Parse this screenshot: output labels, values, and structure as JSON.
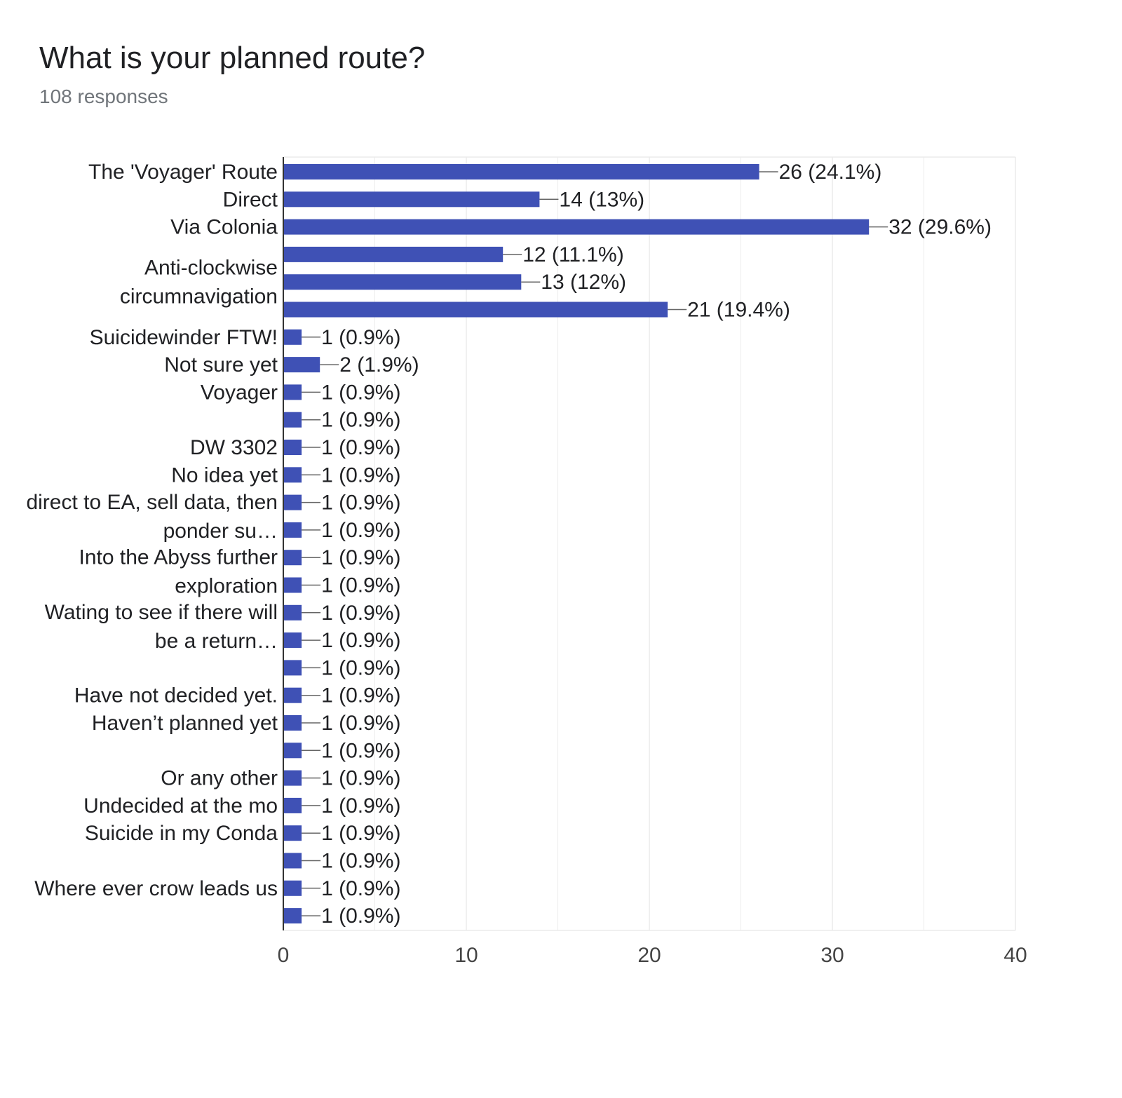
{
  "header": {
    "title": "What is your planned route?",
    "subtitle": "108 responses"
  },
  "colors": {
    "bar": "#3f51b5",
    "grid": "#ebebeb",
    "axis": "#333333",
    "connector": "#666666",
    "label_text": "#202124",
    "tick_text": "#444444"
  },
  "chart_data": {
    "type": "bar",
    "orientation": "horizontal",
    "title": "What is your planned route?",
    "subtitle": "108 responses",
    "xlim": [
      0,
      40
    ],
    "x_ticks": [
      0,
      10,
      20,
      30,
      40
    ],
    "x_tick_labels": [
      "0",
      "10",
      "20",
      "30",
      "40"
    ],
    "grid": true,
    "category_labels": [
      {
        "row": 0,
        "lines": [
          "The 'Voyager' Route"
        ]
      },
      {
        "row": 1,
        "lines": [
          "Direct"
        ]
      },
      {
        "row": 2,
        "lines": [
          "Via Colonia"
        ]
      },
      {
        "row": 4,
        "lines": [
          "Anti-clockwise",
          "circumnavigation"
        ]
      },
      {
        "row": 6,
        "lines": [
          "Suicidewinder FTW!"
        ]
      },
      {
        "row": 7,
        "lines": [
          "Not sure yet"
        ]
      },
      {
        "row": 8,
        "lines": [
          "Voyager"
        ]
      },
      {
        "row": 10,
        "lines": [
          "DW 3302"
        ]
      },
      {
        "row": 11,
        "lines": [
          "No idea yet"
        ]
      },
      {
        "row": 12.5,
        "lines": [
          "direct to EA, sell data, then",
          "ponder su…"
        ]
      },
      {
        "row": 14.5,
        "lines": [
          "Into the Abyss further",
          "exploration"
        ]
      },
      {
        "row": 16.5,
        "lines": [
          "Wating to see if there will",
          "be a return…"
        ]
      },
      {
        "row": 19,
        "lines": [
          "Have not decided yet."
        ]
      },
      {
        "row": 20,
        "lines": [
          "Haven’t planned yet"
        ]
      },
      {
        "row": 22,
        "lines": [
          "Or any other"
        ]
      },
      {
        "row": 23,
        "lines": [
          "Undecided at the mo"
        ]
      },
      {
        "row": 24,
        "lines": [
          "Suicide in my Conda"
        ]
      },
      {
        "row": 26,
        "lines": [
          "Where ever crow leads us"
        ]
      }
    ],
    "values": [
      26,
      14,
      32,
      12,
      13,
      21,
      1,
      2,
      1,
      1,
      1,
      1,
      1,
      1,
      1,
      1,
      1,
      1,
      1,
      1,
      1,
      1,
      1,
      1,
      1,
      1,
      1,
      1
    ],
    "value_labels": [
      "26 (24.1%)",
      "14 (13%)",
      "32 (29.6%)",
      "12 (11.1%)",
      "13 (12%)",
      "21 (19.4%)",
      "1 (0.9%)",
      "2 (1.9%)",
      "1 (0.9%)",
      "1 (0.9%)",
      "1 (0.9%)",
      "1 (0.9%)",
      "1 (0.9%)",
      "1 (0.9%)",
      "1 (0.9%)",
      "1 (0.9%)",
      "1 (0.9%)",
      "1 (0.9%)",
      "1 (0.9%)",
      "1 (0.9%)",
      "1 (0.9%)",
      "1 (0.9%)",
      "1 (0.9%)",
      "1 (0.9%)",
      "1 (0.9%)",
      "1 (0.9%)",
      "1 (0.9%)",
      "1 (0.9%)"
    ]
  }
}
